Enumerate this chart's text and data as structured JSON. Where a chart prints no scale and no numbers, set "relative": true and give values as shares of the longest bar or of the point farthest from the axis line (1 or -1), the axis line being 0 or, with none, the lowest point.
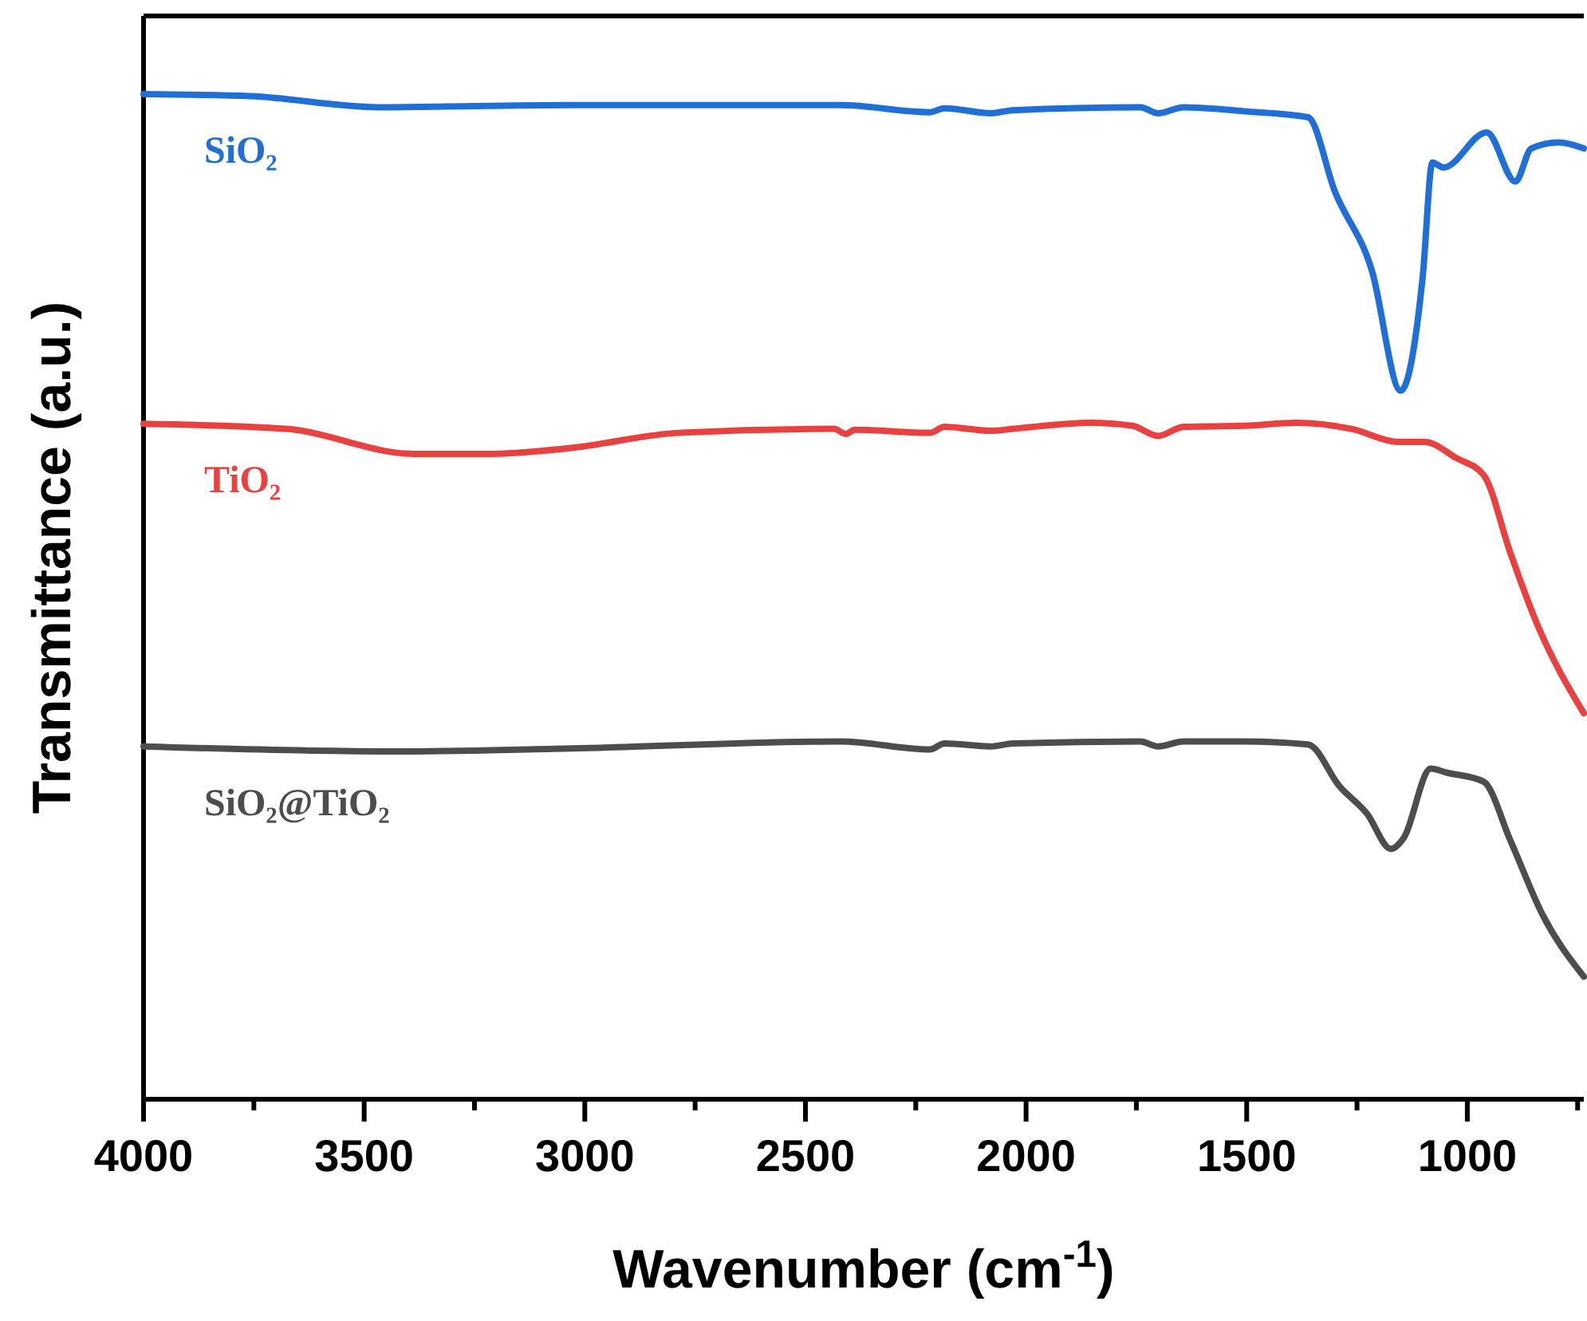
{
  "chart_data": {
    "type": "line",
    "xlabel": "Wavenumber (cm$^{-1}$)",
    "ylabel": "Transmittance (a.u.)",
    "relative": true,
    "xlim": [
      4000,
      736
    ],
    "xticks": [
      4000,
      {
        "value": 3750,
        "label": null
      },
      3500,
      {
        "value": 3250,
        "label": null
      },
      3000,
      {
        "value": 2750,
        "label": null
      },
      2500,
      {
        "value": 2250,
        "label": null
      },
      2000,
      {
        "value": 1750,
        "label": null
      },
      1500,
      {
        "value": 1250,
        "label": null
      },
      1000,
      {
        "value": 750,
        "label": null
      }
    ],
    "grid": false,
    "line_style": "solid",
    "series": [
      {
        "name": "SiO₂",
        "color": "#1f6fd6",
        "x": [
          4000,
          3758,
          3469,
          3031,
          2420,
          2218,
          2185,
          2080,
          2030,
          1741,
          1701,
          1643,
          1506,
          1361,
          1300,
          1216,
          1151,
          1101,
          1079,
          1054,
          956,
          891,
          855,
          793,
          736
        ],
        "values": [
          1.0,
          0.998,
          0.987,
          0.989,
          0.989,
          0.982,
          0.986,
          0.981,
          0.984,
          0.987,
          0.981,
          0.987,
          0.983,
          0.977,
          0.903,
          0.824,
          0.705,
          0.819,
          0.932,
          0.927,
          0.962,
          0.913,
          0.946,
          0.952,
          0.946
        ]
      },
      {
        "name": "TiO₂",
        "color": "#e8413f",
        "x": [
          4000,
          3678,
          3385,
          3226,
          3031,
          2789,
          2435,
          2409,
          2388,
          2218,
          2185,
          2080,
          2030,
          1853,
          1759,
          1701,
          1643,
          1506,
          1386,
          1263,
          1155,
          1097,
          1025,
          963,
          902,
          844,
          736
        ],
        "values": [
          0.672,
          0.667,
          0.642,
          0.642,
          0.648,
          0.663,
          0.667,
          0.662,
          0.666,
          0.663,
          0.669,
          0.665,
          0.667,
          0.673,
          0.67,
          0.66,
          0.669,
          0.67,
          0.673,
          0.667,
          0.654,
          0.654,
          0.638,
          0.621,
          0.543,
          0.475,
          0.384
        ]
      },
      {
        "name": "SiO₂@TiO₂",
        "color": "#4d4d4d",
        "x": [
          4000,
          3436,
          3031,
          2420,
          2218,
          2185,
          2080,
          2030,
          1741,
          1701,
          1643,
          1506,
          1361,
          1289,
          1227,
          1173,
          1144,
          1083,
          1047,
          963,
          902,
          830,
          736
        ],
        "values": [
          0.351,
          0.346,
          0.349,
          0.356,
          0.348,
          0.354,
          0.351,
          0.354,
          0.356,
          0.351,
          0.356,
          0.356,
          0.353,
          0.311,
          0.284,
          0.249,
          0.26,
          0.329,
          0.325,
          0.316,
          0.257,
          0.184,
          0.122
        ]
      }
    ]
  }
}
